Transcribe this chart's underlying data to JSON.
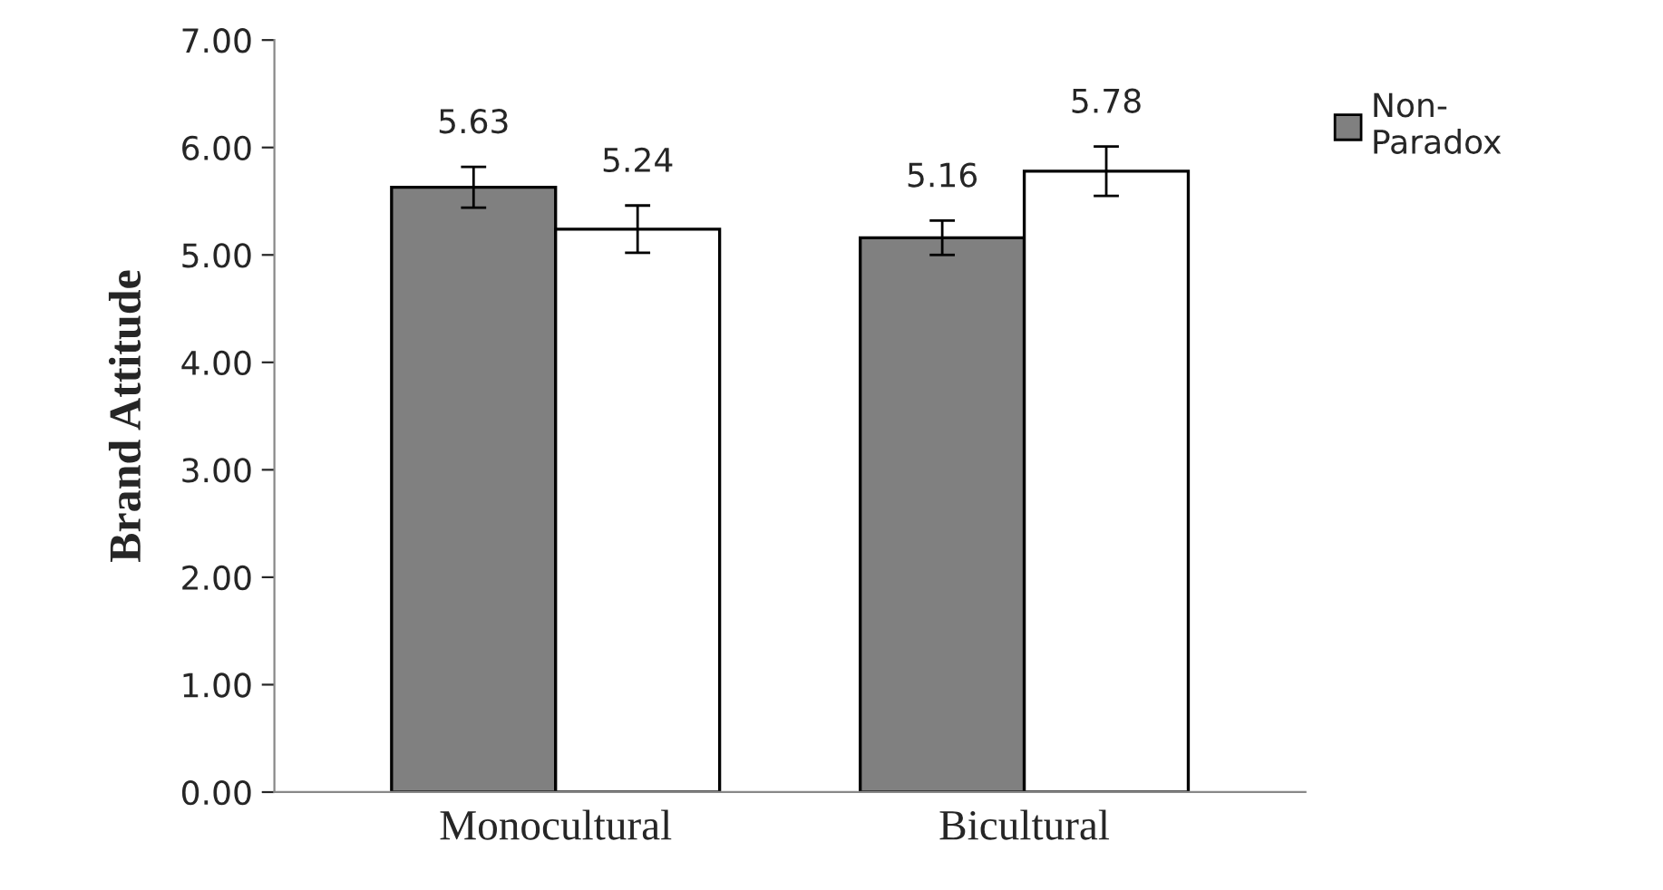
{
  "chart_data": {
    "type": "bar",
    "ylabel": "Brand Attitude",
    "categories": [
      "Monocultural",
      "Bicultural"
    ],
    "series": [
      {
        "name": "Non-\nParadox",
        "color": "#808080",
        "values": [
          5.63,
          5.16
        ],
        "errors": [
          0.19,
          0.16
        ]
      },
      {
        "color": "#ffffff",
        "values": [
          5.24,
          5.78
        ],
        "errors": [
          0.22,
          0.23
        ]
      }
    ],
    "ylim": [
      0,
      7
    ],
    "yticks": [
      {
        "value": 0,
        "label": "0.00"
      },
      {
        "value": 1,
        "label": "1.00"
      },
      {
        "value": 2,
        "label": "2.00"
      },
      {
        "value": 3,
        "label": "3.00"
      },
      {
        "value": 4,
        "label": "4.00"
      },
      {
        "value": 5,
        "label": "5.00"
      },
      {
        "value": 6,
        "label": "6.00"
      },
      {
        "value": 7,
        "label": "7.00"
      }
    ],
    "data_labels": true,
    "grid": false,
    "legend": "top right"
  }
}
